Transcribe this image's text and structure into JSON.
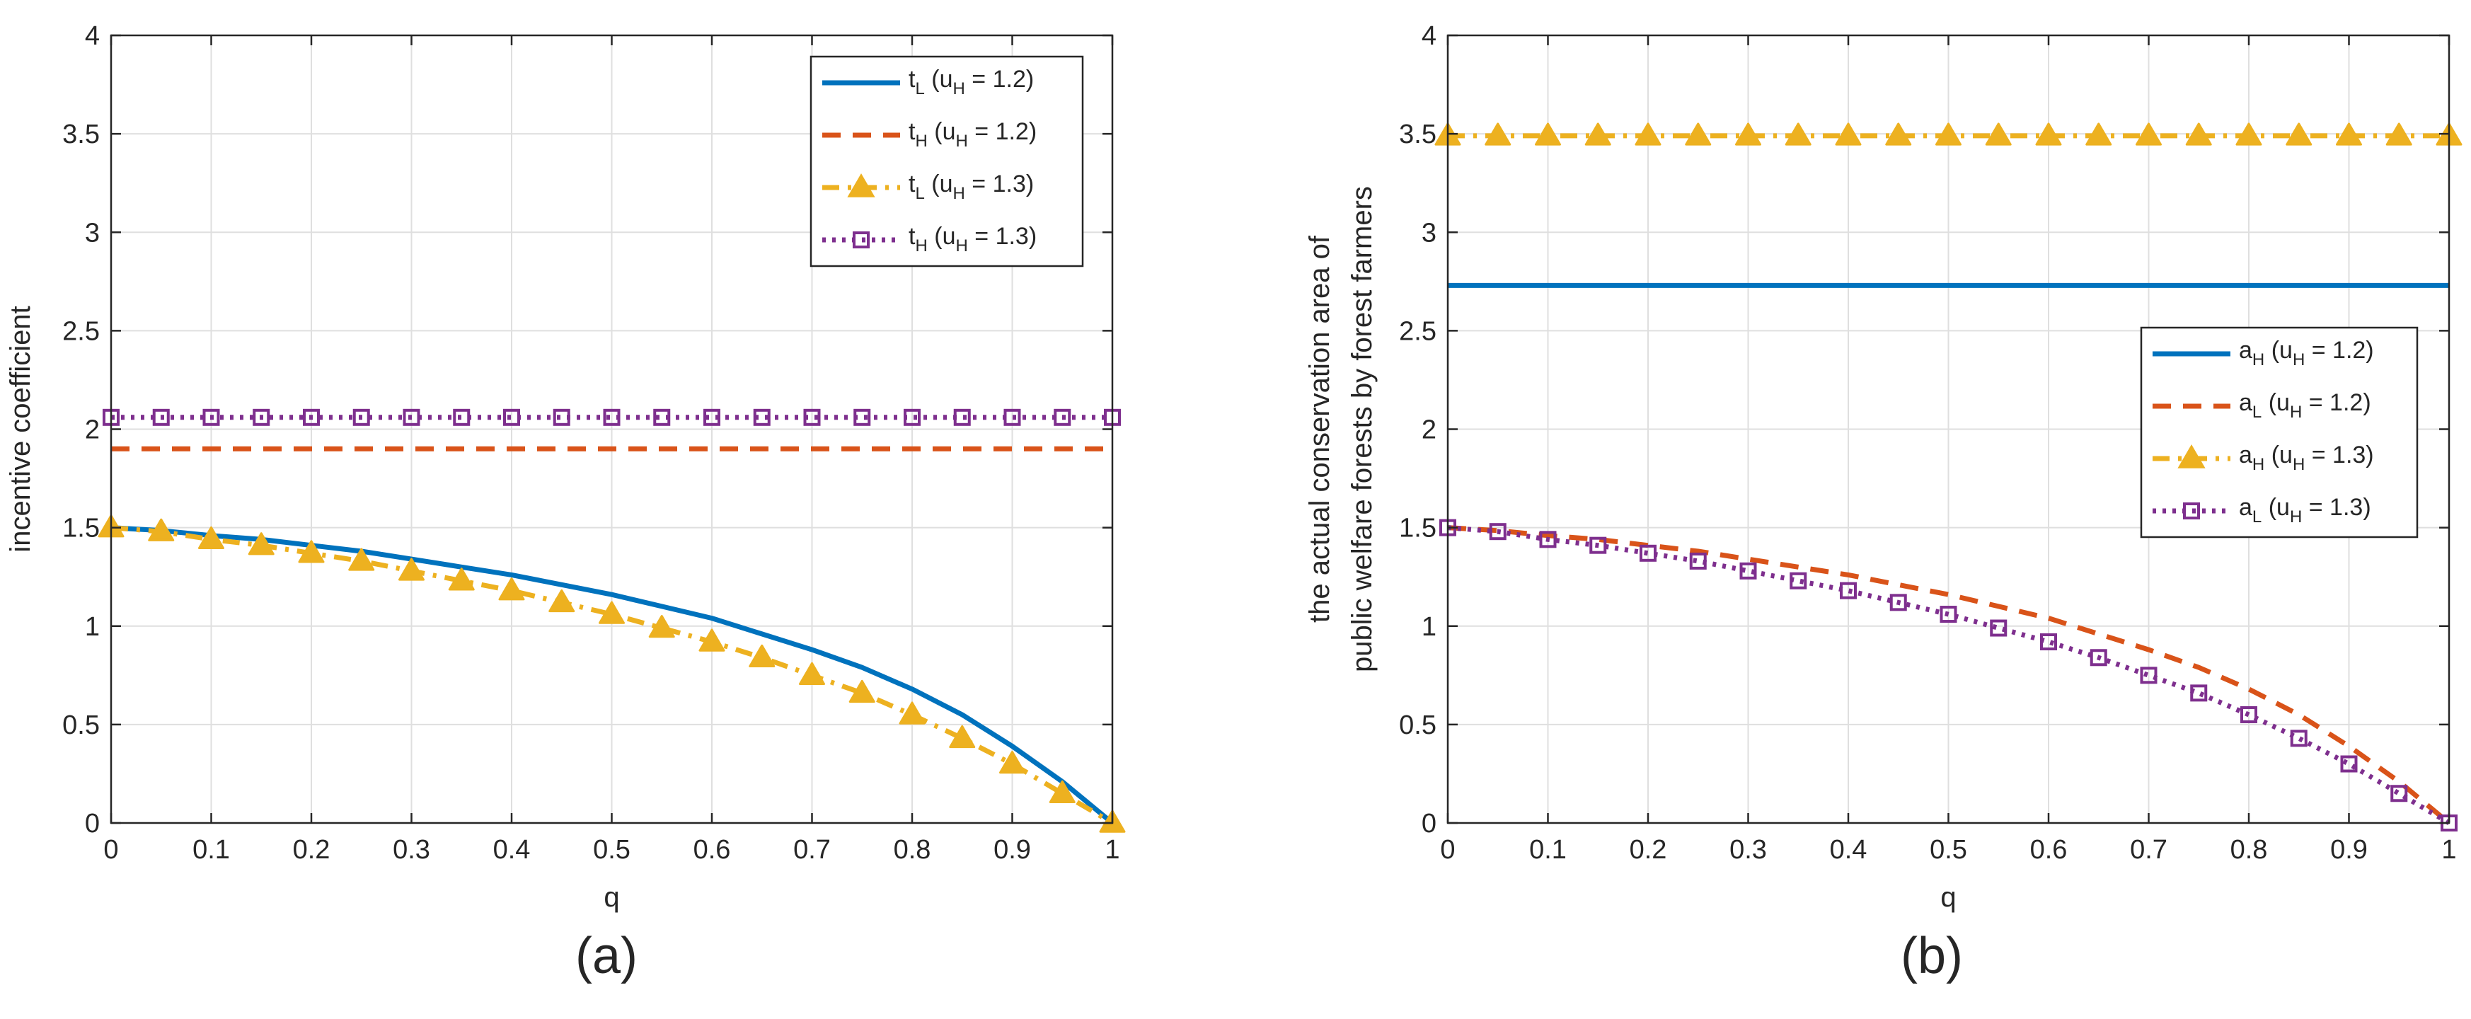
{
  "chart_data": [
    {
      "type": "line",
      "panel_label": "(a)",
      "xlabel": "q",
      "ylabel": [
        "incentive coefficient"
      ],
      "xlim": [
        0,
        1
      ],
      "ylim": [
        0,
        4
      ],
      "xticks": [
        0,
        0.1,
        0.2,
        0.3,
        0.4,
        0.5,
        0.6,
        0.7,
        0.8,
        0.9,
        1
      ],
      "xtick_labels": [
        "0",
        "0.1",
        "0.2",
        "0.3",
        "0.4",
        "0.5",
        "0.6",
        "0.7",
        "0.8",
        "0.9",
        "1"
      ],
      "yticks": [
        0,
        0.5,
        1,
        1.5,
        2,
        2.5,
        3,
        3.5,
        4
      ],
      "ytick_labels": [
        "0",
        "0.5",
        "1",
        "1.5",
        "2",
        "2.5",
        "3",
        "3.5",
        "4"
      ],
      "grid": true,
      "legend_position": "top-right",
      "x": [
        0,
        0.05,
        0.1,
        0.15,
        0.2,
        0.25,
        0.3,
        0.35,
        0.4,
        0.45,
        0.5,
        0.55,
        0.6,
        0.65,
        0.7,
        0.75,
        0.8,
        0.85,
        0.9,
        0.95,
        1
      ],
      "series": [
        {
          "name_main": "t",
          "name_sub": "L",
          "name_suffix": " (u",
          "name_suffix_sub": "H",
          "name_end": " = 1.2)",
          "color": "#0072BD",
          "style": "solid",
          "marker": "none",
          "values": [
            1.5,
            1.485,
            1.46,
            1.44,
            1.41,
            1.38,
            1.34,
            1.3,
            1.26,
            1.21,
            1.16,
            1.1,
            1.04,
            0.96,
            0.88,
            0.79,
            0.68,
            0.55,
            0.39,
            0.21,
            0
          ]
        },
        {
          "name_main": "t",
          "name_sub": "H",
          "name_suffix": " (u",
          "name_suffix_sub": "H",
          "name_end": " = 1.2)",
          "color": "#D95319",
          "style": "dashed",
          "marker": "none",
          "values": [
            1.9,
            1.9,
            1.9,
            1.9,
            1.9,
            1.9,
            1.9,
            1.9,
            1.9,
            1.9,
            1.9,
            1.9,
            1.9,
            1.9,
            1.9,
            1.9,
            1.9,
            1.9,
            1.9,
            1.9,
            1.9
          ]
        },
        {
          "name_main": "t",
          "name_sub": "L",
          "name_suffix": " (u",
          "name_suffix_sub": "H",
          "name_end": " = 1.3)",
          "color": "#EDB120",
          "style": "dashdot",
          "marker": "triangle",
          "values": [
            1.5,
            1.48,
            1.44,
            1.41,
            1.37,
            1.33,
            1.28,
            1.23,
            1.18,
            1.12,
            1.06,
            0.99,
            0.92,
            0.84,
            0.75,
            0.66,
            0.55,
            0.43,
            0.3,
            0.15,
            0
          ]
        },
        {
          "name_main": "t",
          "name_sub": "H",
          "name_suffix": " (u",
          "name_suffix_sub": "H",
          "name_end": " = 1.3)",
          "color": "#7E2F8E",
          "style": "dotted",
          "marker": "square",
          "values": [
            2.06,
            2.06,
            2.06,
            2.06,
            2.06,
            2.06,
            2.06,
            2.06,
            2.06,
            2.06,
            2.06,
            2.06,
            2.06,
            2.06,
            2.06,
            2.06,
            2.06,
            2.06,
            2.06,
            2.06,
            2.06
          ]
        }
      ]
    },
    {
      "type": "line",
      "panel_label": "(b)",
      "xlabel": "q",
      "ylabel": [
        "the actual conservation area of",
        "public welfare forests by forest farmers"
      ],
      "xlim": [
        0,
        1
      ],
      "ylim": [
        0,
        4
      ],
      "xticks": [
        0,
        0.1,
        0.2,
        0.3,
        0.4,
        0.5,
        0.6,
        0.7,
        0.8,
        0.9,
        1
      ],
      "xtick_labels": [
        "0",
        "0.1",
        "0.2",
        "0.3",
        "0.4",
        "0.5",
        "0.6",
        "0.7",
        "0.8",
        "0.9",
        "1"
      ],
      "yticks": [
        0,
        0.5,
        1,
        1.5,
        2,
        2.5,
        3,
        3.5,
        4
      ],
      "ytick_labels": [
        "0",
        "0.5",
        "1",
        "1.5",
        "2",
        "2.5",
        "3",
        "3.5",
        "4"
      ],
      "grid": true,
      "legend_position": "right",
      "x": [
        0,
        0.05,
        0.1,
        0.15,
        0.2,
        0.25,
        0.3,
        0.35,
        0.4,
        0.45,
        0.5,
        0.55,
        0.6,
        0.65,
        0.7,
        0.75,
        0.8,
        0.85,
        0.9,
        0.95,
        1
      ],
      "series": [
        {
          "name_main": "a",
          "name_sub": "H",
          "name_suffix": " (u",
          "name_suffix_sub": "H",
          "name_end": " = 1.2)",
          "color": "#0072BD",
          "style": "solid",
          "marker": "none",
          "values": [
            2.73,
            2.73,
            2.73,
            2.73,
            2.73,
            2.73,
            2.73,
            2.73,
            2.73,
            2.73,
            2.73,
            2.73,
            2.73,
            2.73,
            2.73,
            2.73,
            2.73,
            2.73,
            2.73,
            2.73,
            2.73
          ]
        },
        {
          "name_main": "a",
          "name_sub": "L",
          "name_suffix": " (u",
          "name_suffix_sub": "H",
          "name_end": " = 1.2)",
          "color": "#D95319",
          "style": "dashed",
          "marker": "none",
          "values": [
            1.5,
            1.485,
            1.46,
            1.44,
            1.41,
            1.38,
            1.34,
            1.3,
            1.26,
            1.21,
            1.16,
            1.1,
            1.04,
            0.96,
            0.88,
            0.79,
            0.68,
            0.55,
            0.39,
            0.21,
            0
          ]
        },
        {
          "name_main": "a",
          "name_sub": "H",
          "name_suffix": " (u",
          "name_suffix_sub": "H",
          "name_end": " = 1.3)",
          "color": "#EDB120",
          "style": "dashdot",
          "marker": "triangle",
          "values": [
            3.49,
            3.49,
            3.49,
            3.49,
            3.49,
            3.49,
            3.49,
            3.49,
            3.49,
            3.49,
            3.49,
            3.49,
            3.49,
            3.49,
            3.49,
            3.49,
            3.49,
            3.49,
            3.49,
            3.49,
            3.49
          ]
        },
        {
          "name_main": "a",
          "name_sub": "L",
          "name_suffix": " (u",
          "name_suffix_sub": "H",
          "name_end": " = 1.3)",
          "color": "#7E2F8E",
          "style": "dotted",
          "marker": "square",
          "values": [
            1.5,
            1.48,
            1.44,
            1.41,
            1.37,
            1.33,
            1.28,
            1.23,
            1.18,
            1.12,
            1.06,
            0.99,
            0.92,
            0.84,
            0.75,
            0.66,
            0.55,
            0.43,
            0.3,
            0.15,
            0
          ]
        }
      ]
    }
  ]
}
